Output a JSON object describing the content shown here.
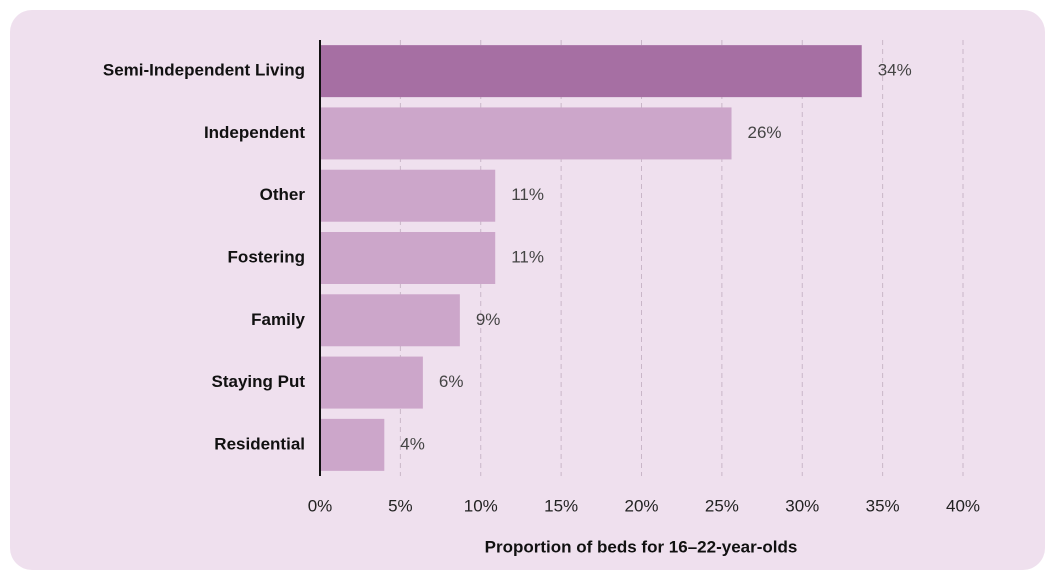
{
  "chart_data": {
    "type": "barh",
    "xlabel": "Proportion of beds for 16–22-year-olds",
    "categories": [
      "Semi-Independent Living",
      "Independent",
      "Other",
      "Fostering",
      "Family",
      "Staying Put",
      "Residential"
    ],
    "values": [
      33.7,
      25.6,
      10.9,
      10.9,
      8.7,
      6.4,
      4.0
    ],
    "value_labels": [
      "34%",
      "26%",
      "11%",
      "11%",
      "9%",
      "6%",
      "4%"
    ],
    "colors": [
      "#a66fa3",
      "#cca6ca",
      "#cca6ca",
      "#cca6ca",
      "#cca6ca",
      "#cca6ca",
      "#cca6ca"
    ],
    "xlim": [
      0,
      40
    ],
    "xticks": [
      {
        "value": 0,
        "label": "0%"
      },
      {
        "value": 5,
        "label": "5%"
      },
      {
        "value": 10,
        "label": "10%"
      },
      {
        "value": 15,
        "label": "15%"
      },
      {
        "value": 20,
        "label": "20%"
      },
      {
        "value": 25,
        "label": "25%"
      },
      {
        "value": 30,
        "label": "30%"
      },
      {
        "value": 35,
        "label": "35%"
      },
      {
        "value": 40,
        "label": "40%"
      }
    ],
    "grid": true
  }
}
